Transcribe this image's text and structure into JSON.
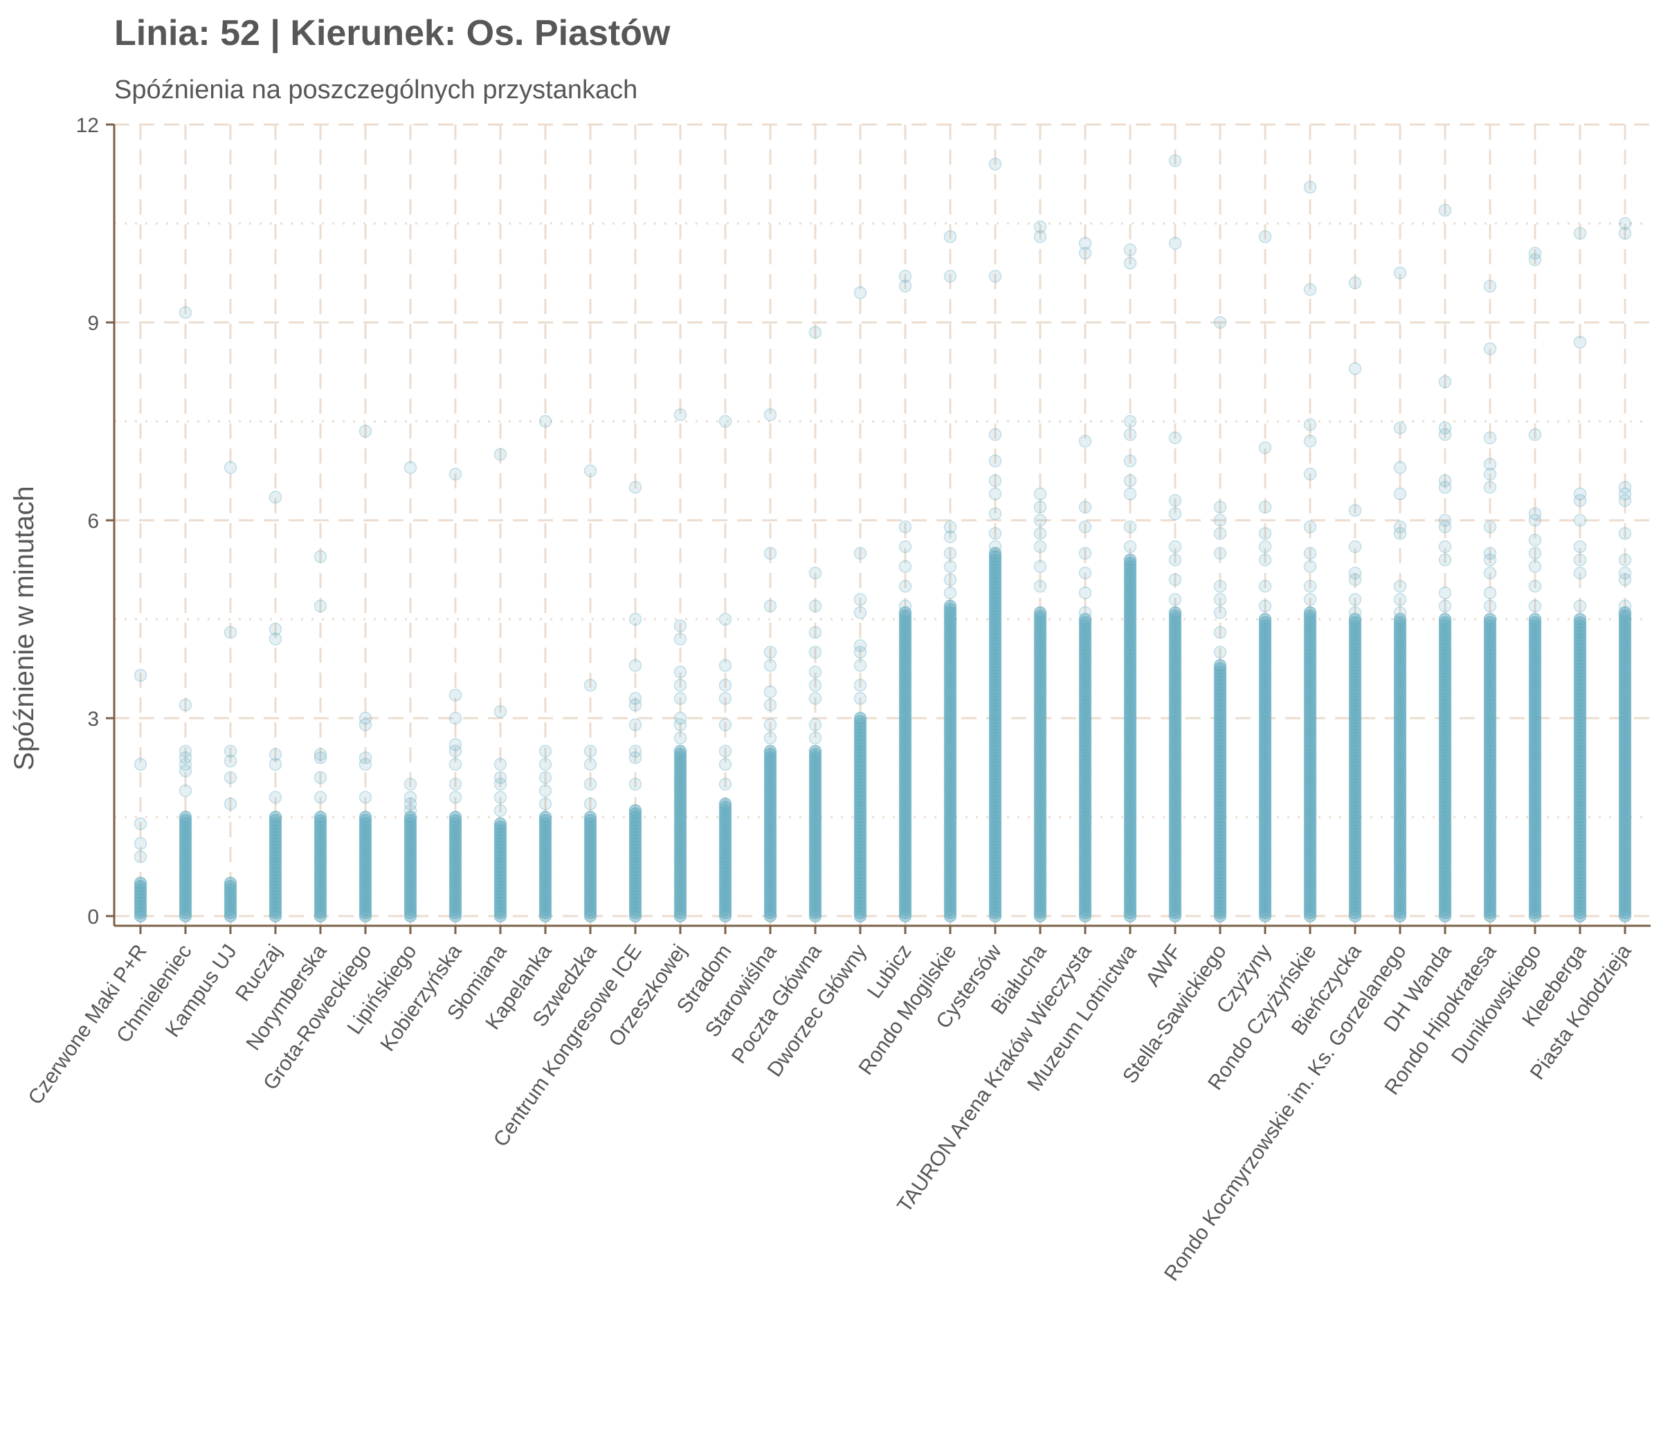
{
  "chart_data": {
    "type": "scatter",
    "title": "Linia: 52 | Kierunek: Os. Piastów",
    "subtitle": "Spóźnienia na poszczególnych przystankach",
    "xlabel": "",
    "ylabel": "Spóźnienie w minutach",
    "ylim": [
      -0.15,
      12
    ],
    "yticks": [
      0,
      3,
      6,
      9,
      12
    ],
    "grid": true,
    "point_color": "#67adc1",
    "axis_color": "#7b6148",
    "grid_color": "#ecdccf",
    "categories": [
      "Czerwone Maki P+R",
      "Chmieleniec",
      "Kampus UJ",
      "Ruczaj",
      "Norymberska",
      "Grota-Roweckiego",
      "Lipińskiego",
      "Kobierzyńska",
      "Słomiana",
      "Kapelanka",
      "Szwedzka",
      "Centrum Kongresowe ICE",
      "Orzeszkowej",
      "Stradom",
      "Starowiślna",
      "Poczta Główna",
      "Dworzec Główny",
      "Lubicz",
      "Rondo Mogilskie",
      "Cystersów",
      "Białucha",
      "TAURON Arena Kraków Wieczysta",
      "Muzeum Lotnictwa",
      "AWF",
      "Stella-Sawickiego",
      "Czyżyny",
      "Rondo Czyżyńskie",
      "Bieńczycka",
      "Rondo Kocmyrzowskie im. Ks. Gorzelanego",
      "DH Wanda",
      "Rondo Hipokratesa",
      "Dunikowskiego",
      "Kleeberga",
      "Piasta Kołodzieja"
    ],
    "bulk_max": [
      0.5,
      1.5,
      0.5,
      1.5,
      1.5,
      1.5,
      1.5,
      1.5,
      1.4,
      1.5,
      1.5,
      1.6,
      2.5,
      1.7,
      2.5,
      2.5,
      3.0,
      4.6,
      4.7,
      5.5,
      4.6,
      4.5,
      5.4,
      4.6,
      3.8,
      4.5,
      4.6,
      4.5,
      4.5,
      4.5,
      4.5,
      4.5,
      4.5,
      4.6
    ],
    "outliers": [
      [
        2.3,
        3.65,
        1.4,
        1.1,
        0.9
      ],
      [
        2.5,
        2.4,
        2.2,
        3.2,
        9.15,
        1.9,
        2.3
      ],
      [
        2.5,
        2.35,
        2.1,
        1.7,
        4.3,
        6.8
      ],
      [
        1.8,
        2.3,
        2.45,
        4.2,
        4.35,
        6.35
      ],
      [
        2.45,
        2.4,
        2.1,
        1.8,
        4.7,
        5.45
      ],
      [
        2.4,
        2.3,
        1.8,
        2.9,
        3.0,
        7.35
      ],
      [
        1.6,
        1.7,
        1.8,
        2.0,
        6.8
      ],
      [
        1.8,
        2.0,
        2.3,
        2.5,
        2.6,
        3.0,
        3.35,
        6.7
      ],
      [
        1.6,
        1.8,
        2.0,
        2.1,
        2.3,
        3.1,
        7.0
      ],
      [
        1.7,
        1.9,
        2.1,
        2.3,
        2.5,
        7.5
      ],
      [
        1.7,
        2.0,
        2.3,
        2.5,
        3.5,
        6.75
      ],
      [
        2.0,
        2.4,
        2.5,
        2.9,
        3.2,
        3.3,
        3.8,
        4.5,
        6.5
      ],
      [
        2.7,
        2.9,
        3.0,
        3.3,
        3.5,
        3.7,
        4.2,
        4.4,
        7.6
      ],
      [
        2.0,
        2.3,
        2.5,
        2.9,
        3.3,
        3.5,
        3.8,
        4.5,
        7.5
      ],
      [
        2.7,
        2.9,
        3.2,
        3.4,
        3.8,
        4.0,
        4.7,
        5.5,
        7.6
      ],
      [
        2.7,
        2.9,
        3.3,
        3.5,
        3.7,
        4.0,
        4.3,
        4.7,
        5.2,
        8.85
      ],
      [
        3.3,
        3.5,
        3.8,
        4.0,
        4.1,
        4.6,
        4.8,
        5.5,
        9.45
      ],
      [
        4.7,
        5.0,
        5.3,
        5.6,
        5.9,
        9.55,
        9.7
      ],
      [
        4.9,
        5.1,
        5.3,
        5.5,
        5.75,
        5.9,
        9.7,
        10.3
      ],
      [
        5.6,
        5.8,
        6.1,
        6.4,
        6.6,
        6.9,
        7.3,
        9.7,
        11.4
      ],
      [
        5.0,
        5.3,
        5.6,
        5.8,
        6.0,
        6.2,
        6.4,
        10.3,
        10.45
      ],
      [
        4.6,
        4.9,
        5.2,
        5.5,
        5.9,
        6.2,
        7.2,
        10.05,
        10.2
      ],
      [
        5.6,
        5.9,
        6.4,
        6.6,
        6.9,
        7.3,
        7.5,
        9.9,
        10.1
      ],
      [
        4.8,
        5.1,
        5.4,
        5.6,
        6.1,
        6.3,
        7.25,
        10.2,
        11.45
      ],
      [
        4.0,
        4.3,
        4.6,
        4.8,
        5.0,
        5.5,
        5.8,
        6.0,
        6.2,
        9.0
      ],
      [
        4.7,
        5.0,
        5.4,
        5.6,
        5.8,
        6.2,
        7.1,
        10.3
      ],
      [
        4.8,
        5.0,
        5.3,
        5.5,
        5.9,
        6.7,
        7.2,
        7.45,
        9.5,
        11.05
      ],
      [
        4.6,
        4.8,
        5.1,
        5.2,
        5.6,
        6.15,
        8.3,
        9.6
      ],
      [
        4.6,
        4.8,
        5.0,
        5.8,
        5.9,
        6.4,
        6.8,
        7.4,
        9.75
      ],
      [
        4.7,
        4.9,
        5.4,
        5.6,
        5.9,
        6.0,
        6.5,
        6.6,
        7.3,
        7.4,
        8.1,
        10.7
      ],
      [
        4.7,
        4.9,
        5.2,
        5.4,
        5.5,
        5.9,
        6.5,
        6.7,
        6.85,
        7.25,
        8.6,
        9.55
      ],
      [
        4.7,
        5.0,
        5.3,
        5.5,
        5.7,
        6.0,
        6.1,
        7.3,
        9.95,
        10.05
      ],
      [
        4.7,
        5.2,
        5.4,
        5.6,
        6.0,
        6.3,
        6.4,
        8.7,
        10.35
      ],
      [
        4.7,
        5.1,
        5.2,
        5.4,
        5.8,
        6.3,
        6.4,
        6.5,
        10.35,
        10.5
      ]
    ]
  }
}
